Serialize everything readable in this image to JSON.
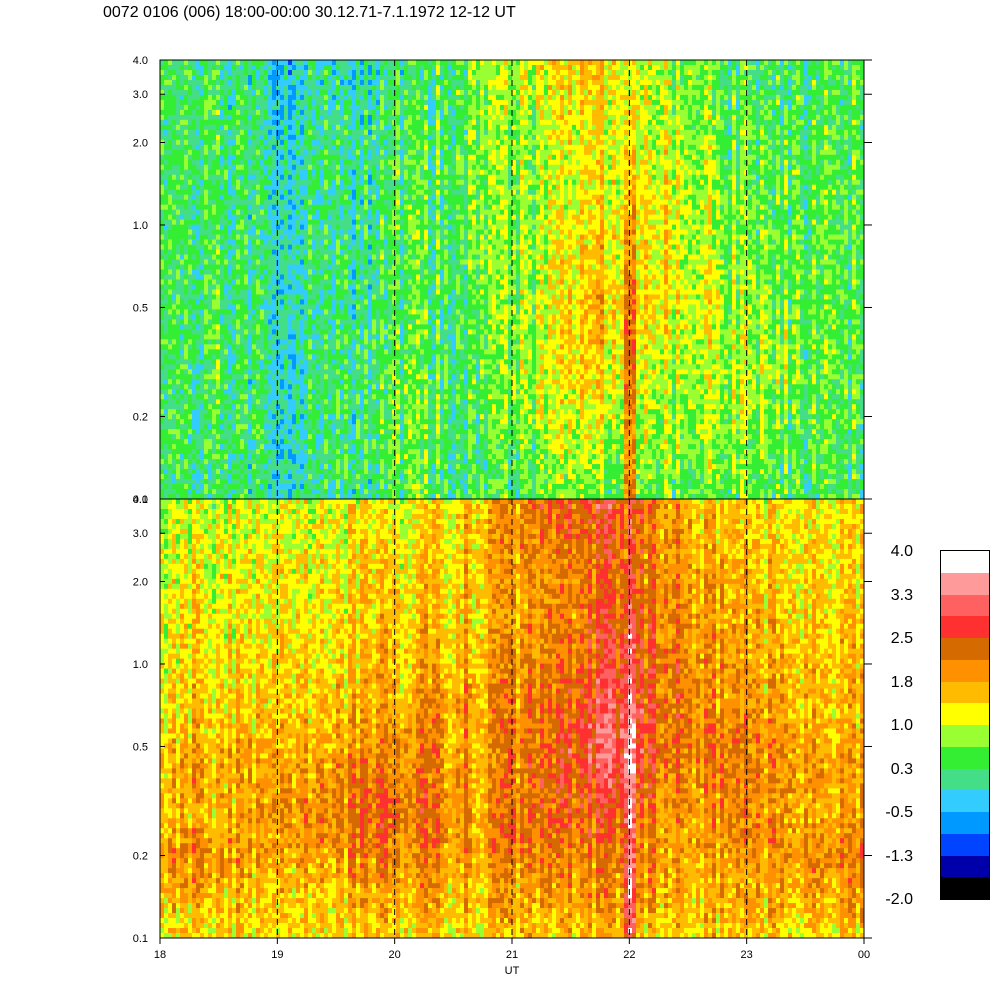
{
  "header": {
    "title": "0072 0106 (006) 18:00-00:00 30.12.71-7.1.1972  12-12 UT"
  },
  "chart_data": {
    "type": "heatmap",
    "title": "0072 0106 (006) 18:00-00:00 30.12.71-7.1.1972  12-12 UT",
    "xlabel": "UT",
    "ylabel": "",
    "x_ticks": [
      "18",
      "19",
      "20",
      "21",
      "22",
      "23",
      "00"
    ],
    "x_tick_values": [
      18,
      19,
      20,
      21,
      22,
      23,
      24
    ],
    "xlim": [
      18,
      24
    ],
    "y_scale": "log",
    "y_ticks": [
      "0.1",
      "0.2",
      "0.5",
      "1.0",
      "2.0",
      "3.0",
      "4.0"
    ],
    "y_tick_values": [
      0.1,
      0.2,
      0.5,
      1.0,
      2.0,
      3.0,
      4.0
    ],
    "ylim": [
      0.1,
      4.0
    ],
    "hour_markers": "dashed vertical lines at 19, 20, 21, 22, 23",
    "panels": [
      {
        "name": "upper",
        "levels": [
          [
            0.3,
            0.3,
            -0.2,
            -0.1,
            0.2,
            0.6,
            1.2,
            1.5,
            0.8,
            0.4,
            0.3,
            0.4
          ],
          [
            0.3,
            0.3,
            -0.2,
            0.0,
            0.2,
            0.6,
            1.0,
            1.3,
            0.9,
            0.4,
            0.3,
            0.4
          ],
          [
            0.3,
            0.3,
            0.0,
            0.1,
            0.3,
            0.6,
            0.8,
            1.2,
            1.0,
            0.5,
            0.4,
            0.4
          ],
          [
            0.3,
            0.3,
            0.0,
            0.1,
            0.3,
            0.6,
            0.8,
            1.3,
            1.1,
            0.6,
            0.4,
            0.4
          ],
          [
            0.3,
            0.3,
            0.0,
            0.1,
            0.4,
            0.5,
            0.8,
            1.4,
            1.2,
            0.6,
            0.5,
            0.4
          ],
          [
            0.3,
            0.3,
            0.0,
            0.1,
            0.4,
            0.5,
            0.9,
            1.4,
            1.2,
            0.7,
            0.5,
            0.4
          ],
          [
            0.3,
            0.3,
            0.0,
            0.1,
            0.4,
            0.4,
            0.9,
            1.6,
            1.3,
            0.8,
            0.5,
            0.4
          ],
          [
            0.3,
            0.3,
            0.0,
            0.2,
            0.4,
            0.4,
            1.0,
            1.5,
            1.1,
            0.9,
            0.6,
            0.4
          ],
          [
            0.2,
            0.3,
            0.0,
            0.2,
            0.5,
            0.3,
            1.0,
            1.3,
            0.9,
            0.9,
            0.6,
            0.4
          ],
          [
            0.3,
            0.3,
            0.0,
            0.2,
            0.5,
            0.3,
            0.9,
            1.0,
            0.8,
            0.8,
            0.5,
            0.4
          ],
          [
            0.3,
            0.3,
            0.0,
            0.2,
            0.5,
            0.2,
            0.6,
            0.8,
            0.7,
            0.6,
            0.5,
            0.3
          ],
          [
            0.2,
            0.2,
            0.0,
            0.1,
            0.4,
            0.2,
            0.5,
            0.6,
            0.6,
            0.5,
            0.3,
            0.3
          ]
        ]
      },
      {
        "name": "lower",
        "levels": [
          [
            1.0,
            1.0,
            1.1,
            1.1,
            1.2,
            1.6,
            2.2,
            2.6,
            1.8,
            1.3,
            1.2,
            1.2
          ],
          [
            1.1,
            1.1,
            1.1,
            1.2,
            1.3,
            1.6,
            2.0,
            2.4,
            1.9,
            1.4,
            1.3,
            1.3
          ],
          [
            1.2,
            1.2,
            1.2,
            1.3,
            1.4,
            1.6,
            1.8,
            2.2,
            2.0,
            1.5,
            1.3,
            1.3
          ],
          [
            1.3,
            1.2,
            1.3,
            1.3,
            1.5,
            1.6,
            1.8,
            2.4,
            2.1,
            1.6,
            1.4,
            1.3
          ],
          [
            1.3,
            1.3,
            1.4,
            1.4,
            1.6,
            1.7,
            1.9,
            2.5,
            2.2,
            1.7,
            1.5,
            1.4
          ],
          [
            1.4,
            1.4,
            1.5,
            1.5,
            1.8,
            1.8,
            2.1,
            2.7,
            2.2,
            1.8,
            1.6,
            1.5
          ],
          [
            1.5,
            1.6,
            1.6,
            1.7,
            2.0,
            1.8,
            2.1,
            3.0,
            2.3,
            2.0,
            1.7,
            1.6
          ],
          [
            1.8,
            1.7,
            1.8,
            2.0,
            2.2,
            1.8,
            2.2,
            2.7,
            2.1,
            2.0,
            1.8,
            1.7
          ],
          [
            1.6,
            1.6,
            2.0,
            2.1,
            2.3,
            1.9,
            2.2,
            2.3,
            1.9,
            1.9,
            1.7,
            1.6
          ],
          [
            2.1,
            1.9,
            1.7,
            1.9,
            2.0,
            1.9,
            2.0,
            2.0,
            1.9,
            1.7,
            1.9,
            2.0
          ],
          [
            1.7,
            1.6,
            1.5,
            1.6,
            1.7,
            1.6,
            1.7,
            1.8,
            1.7,
            1.6,
            1.6,
            1.7
          ],
          [
            1.3,
            1.3,
            1.3,
            1.3,
            1.4,
            1.4,
            1.4,
            1.5,
            1.4,
            1.4,
            1.3,
            1.3
          ]
        ]
      }
    ],
    "colorbar": {
      "tick_labels": [
        "4.0",
        "3.3",
        "2.5",
        "1.8",
        "1.0",
        "0.3",
        "-0.5",
        "-1.3",
        "-2.0"
      ],
      "colors": [
        "#ffffff",
        "#ff9a9a",
        "#ff6060",
        "#ff3030",
        "#d46a00",
        "#ff9000",
        "#ffbb00",
        "#ffff00",
        "#99ff33",
        "#33ee33",
        "#44dd88",
        "#33ccff",
        "#0099ff",
        "#0044ff",
        "#0000aa",
        "#000000"
      ]
    }
  }
}
